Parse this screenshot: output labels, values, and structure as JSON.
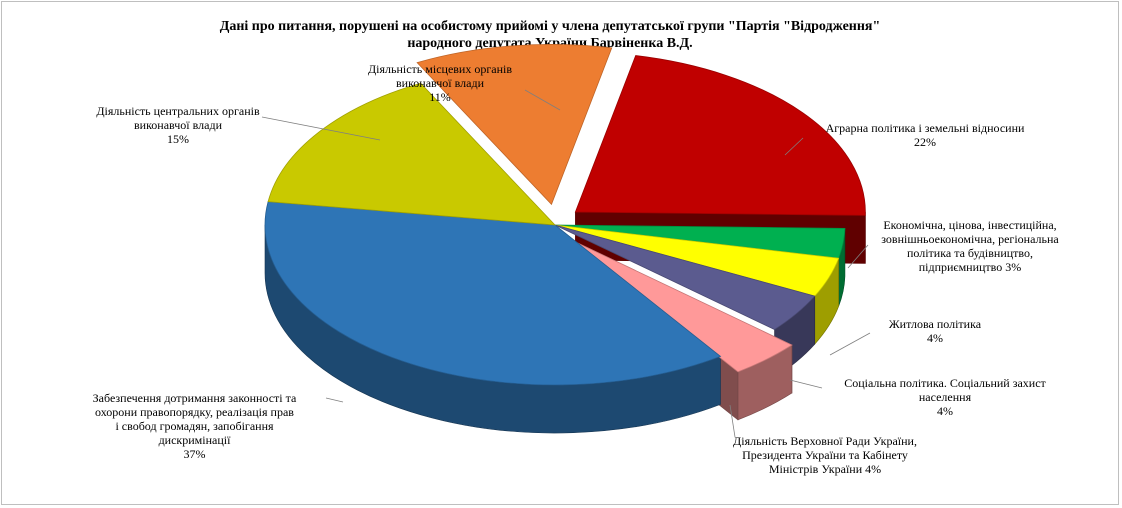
{
  "chart_data": {
    "type": "pie",
    "title_lines": [
      "Дані про питання, порушені на особистому прийомі у члена депутатської групи \"Партія  \"Відродження\"",
      "народного депутата України Барвіненка В.Д."
    ],
    "slices": [
      {
        "label_lines": [
          "Аграрна політика і земельні відносини",
          "22%"
        ],
        "value": 22,
        "color": "#c00000",
        "exploded": true
      },
      {
        "label_lines": [
          "Економічна, цінова, інвестиційна,",
          "зовнішньоекономічна, регіональна",
          "політика та будівництво,",
          "підприємництво 3%"
        ],
        "value": 3,
        "color": "#00b050",
        "exploded": false
      },
      {
        "label_lines": [
          "Житлова політика",
          "4%"
        ],
        "value": 4,
        "color": "#ffff00",
        "exploded": false
      },
      {
        "label_lines": [
          "Соціальна політика.  Соціальний захист",
          "населення",
          "4%"
        ],
        "value": 4,
        "color": "#5b5b8f",
        "exploded": false
      },
      {
        "label_lines": [
          "Діяльність Верховної Ради України,",
          "Президента України та Кабінету",
          "Міністрів України 4%"
        ],
        "value": 4,
        "color": "#ff9999",
        "exploded": true
      },
      {
        "label_lines": [
          "Забезпечення дотримання законності та",
          "охорони правопорядку, реалізація прав",
          "і свобод громадян, запобігання",
          "дискримінації",
          "37%"
        ],
        "value": 37,
        "color": "#2e75b6",
        "exploded": false
      },
      {
        "label_lines": [
          "Діяльність центральних органів",
          "виконавчої влади",
          "15%"
        ],
        "value": 15,
        "color": "#c9c900",
        "exploded": false
      },
      {
        "label_lines": [
          "Діяльність  місцевих органів",
          "виконавчої влади",
          "11%"
        ],
        "value": 11,
        "color": "#ed7d31",
        "exploded": true
      }
    ]
  }
}
